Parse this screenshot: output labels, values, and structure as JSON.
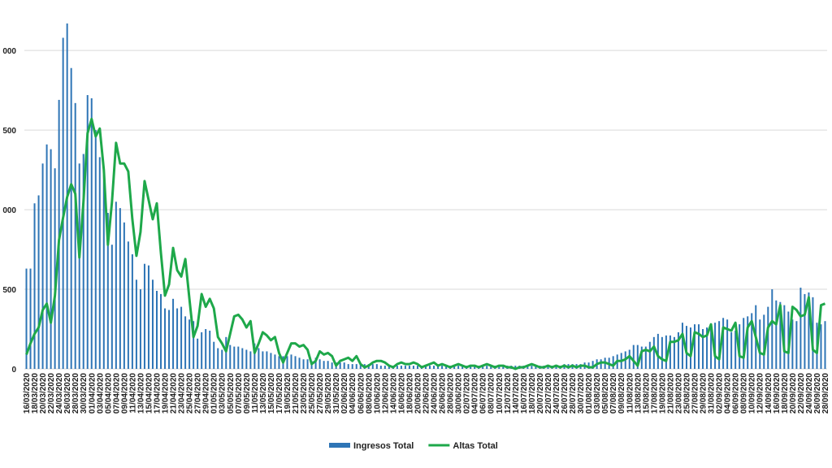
{
  "chart_data": {
    "type": "bar",
    "categories": [
      "16/03/2020",
      null,
      "18/03/2020",
      null,
      "20/03/2020",
      null,
      "22/03/2020",
      null,
      "24/03/2020",
      null,
      "26/03/2020",
      null,
      "28/03/2020",
      null,
      "30/03/2020",
      null,
      "01/04/2020",
      null,
      "03/04/2020",
      null,
      "05/04/2020",
      null,
      "07/04/2020",
      null,
      "09/04/2020",
      null,
      "11/04/2020",
      null,
      "13/04/2020",
      null,
      "15/04/2020",
      null,
      "17/04/2020",
      null,
      "19/04/2020",
      null,
      "21/04/2020",
      null,
      "23/04/2020",
      null,
      "25/04/2020",
      null,
      "27/04/2020",
      null,
      "29/04/2020",
      null,
      "01/05/2020",
      null,
      "03/05/2020",
      null,
      "05/05/2020",
      null,
      "07/05/2020",
      null,
      "09/05/2020",
      null,
      "11/05/2020",
      null,
      "13/05/2020",
      null,
      "15/05/2020",
      null,
      "17/05/2020",
      null,
      "19/05/2020",
      null,
      "21/05/2020",
      null,
      "23/05/2020",
      null,
      "25/05/2020",
      null,
      "27/05/2020",
      null,
      "29/05/2020",
      null,
      "31/05/2020",
      null,
      "02/06/2020",
      null,
      "04/06/2020",
      null,
      "06/06/2020",
      null,
      "08/06/2020",
      null,
      "10/06/2020",
      null,
      "12/06/2020",
      null,
      "14/06/2020",
      null,
      "16/06/2020",
      null,
      "18/06/2020",
      null,
      "20/06/2020",
      null,
      "22/06/2020",
      null,
      "24/06/2020",
      null,
      "26/06/2020",
      null,
      "28/06/2020",
      null,
      "30/06/2020",
      null,
      "02/07/2020",
      null,
      "04/07/2020",
      null,
      "06/07/2020",
      null,
      "08/07/2020",
      null,
      "10/07/2020",
      null,
      "12/07/2020",
      null,
      "14/07/2020",
      null,
      "16/07/2020",
      null,
      "18/07/2020",
      null,
      "20/07/2020",
      null,
      "22/07/2020",
      null,
      "24/07/2020",
      null,
      "26/07/2020",
      null,
      "28/07/2020",
      null,
      "30/07/2020",
      null,
      "01/08/2020",
      null,
      "03/08/2020",
      null,
      "05/08/2020",
      null,
      "07/08/2020",
      null,
      "09/08/2020",
      null,
      "11/08/2020",
      null,
      "13/08/2020",
      null,
      "15/08/2020",
      null,
      "17/08/2020",
      null,
      "19/08/2020",
      null,
      "21/08/2020",
      null,
      "23/08/2020",
      null,
      "25/08/2020",
      null,
      "27/08/2020",
      null,
      "29/08/2020",
      null,
      "31/08/2020",
      null,
      "02/09/2020",
      null,
      "04/09/2020",
      null,
      "06/09/2020",
      null,
      "08/09/2020",
      null,
      "10/09/2020",
      null,
      "12/09/2020",
      null,
      "14/09/2020",
      null,
      "16/09/2020",
      null,
      "18/09/2020",
      null,
      "20/09/2020",
      null,
      "22/09/2020",
      null,
      "24/09/2020",
      null,
      "26/09/2020",
      null,
      "28/09/2020"
    ],
    "series": [
      {
        "name": "Ingresos Total",
        "type": "bar",
        "color": "#2e75b6",
        "values": [
          630,
          630,
          1040,
          1090,
          1290,
          1410,
          1380,
          1260,
          1690,
          2080,
          2170,
          1890,
          1670,
          1290,
          1350,
          1720,
          1700,
          1500,
          1330,
          1220,
          980,
          780,
          1050,
          1010,
          920,
          800,
          720,
          560,
          500,
          660,
          650,
          560,
          490,
          470,
          380,
          370,
          440,
          380,
          390,
          330,
          310,
          300,
          190,
          230,
          250,
          240,
          170,
          130,
          120,
          200,
          150,
          140,
          140,
          130,
          120,
          110,
          160,
          130,
          110,
          110,
          100,
          90,
          80,
          80,
          80,
          90,
          80,
          70,
          60,
          60,
          50,
          70,
          60,
          50,
          50,
          40,
          40,
          40,
          40,
          30,
          30,
          30,
          30,
          30,
          30,
          30,
          30,
          20,
          20,
          20,
          20,
          20,
          20,
          20,
          20,
          20,
          20,
          20,
          20,
          20,
          20,
          20,
          20,
          20,
          20,
          20,
          20,
          20,
          20,
          20,
          20,
          20,
          20,
          20,
          20,
          20,
          20,
          20,
          20,
          20,
          20,
          20,
          20,
          20,
          20,
          20,
          20,
          20,
          20,
          20,
          20,
          20,
          30,
          30,
          30,
          30,
          30,
          40,
          40,
          50,
          60,
          60,
          70,
          70,
          80,
          90,
          100,
          110,
          120,
          150,
          150,
          140,
          140,
          170,
          200,
          220,
          200,
          210,
          210,
          200,
          230,
          290,
          270,
          260,
          280,
          280,
          250,
          260,
          270,
          290,
          300,
          320,
          310,
          230,
          240,
          280,
          320,
          330,
          350,
          400,
          310,
          340,
          390,
          500,
          430,
          420,
          400,
          360,
          310,
          300,
          510,
          470,
          480,
          450,
          290,
          280,
          300
        ]
      },
      {
        "name": "Altas Total",
        "type": "line",
        "color": "#1ea84a",
        "values": [
          90,
          160,
          220,
          260,
          370,
          410,
          290,
          460,
          810,
          950,
          1080,
          1160,
          1100,
          700,
          1050,
          1480,
          1570,
          1460,
          1510,
          1250,
          780,
          1050,
          1420,
          1290,
          1290,
          1240,
          940,
          710,
          860,
          1180,
          1060,
          940,
          1040,
          730,
          460,
          530,
          760,
          620,
          580,
          690,
          440,
          200,
          270,
          470,
          390,
          440,
          380,
          200,
          160,
          110,
          220,
          330,
          340,
          310,
          260,
          300,
          100,
          160,
          230,
          210,
          180,
          200,
          100,
          40,
          100,
          160,
          160,
          140,
          150,
          120,
          30,
          50,
          110,
          90,
          100,
          80,
          20,
          50,
          60,
          70,
          50,
          80,
          30,
          10,
          20,
          40,
          50,
          50,
          40,
          20,
          10,
          30,
          40,
          30,
          30,
          40,
          30,
          10,
          20,
          30,
          40,
          20,
          30,
          20,
          10,
          20,
          30,
          20,
          10,
          20,
          20,
          10,
          20,
          30,
          20,
          10,
          20,
          20,
          10,
          10,
          0,
          10,
          10,
          20,
          30,
          20,
          10,
          10,
          20,
          10,
          20,
          10,
          20,
          10,
          20,
          10,
          20,
          20,
          10,
          10,
          30,
          40,
          40,
          30,
          20,
          50,
          50,
          60,
          80,
          50,
          20,
          110,
          120,
          110,
          140,
          80,
          60,
          50,
          170,
          170,
          180,
          220,
          100,
          80,
          230,
          220,
          200,
          210,
          280,
          80,
          60,
          260,
          250,
          240,
          290,
          80,
          70,
          260,
          300,
          200,
          100,
          90,
          260,
          300,
          280,
          400,
          110,
          100,
          390,
          370,
          330,
          340,
          450,
          120,
          100,
          400,
          410
        ]
      }
    ],
    "ylim": [
      0,
      2200
    ],
    "yticks": [
      0,
      500,
      {
        "value": 1000,
        "label": "000"
      },
      {
        "value": 1500,
        "label": "500"
      },
      {
        "value": 2000,
        "label": "000"
      }
    ],
    "grid": true,
    "legend": "bottom"
  }
}
